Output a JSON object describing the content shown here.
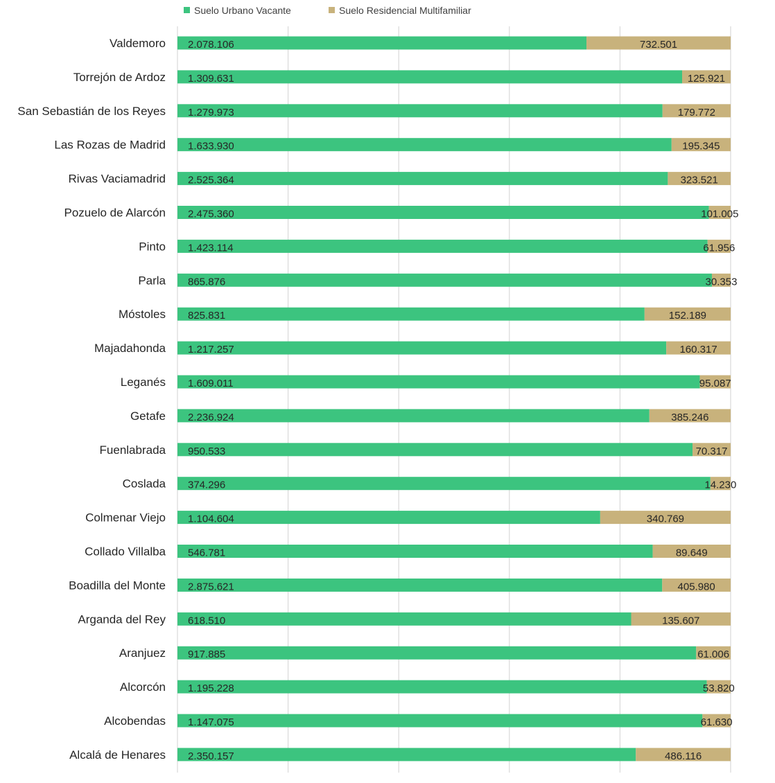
{
  "chart_data": {
    "type": "bar",
    "orientation": "horizontal",
    "stacking": "percent",
    "categories": [
      "Valdemoro",
      "Torrejón de Ardoz",
      "San Sebastián de los Reyes",
      "Las Rozas de Madrid",
      "Rivas Vaciamadrid",
      "Pozuelo de Alarcón",
      "Pinto",
      "Parla",
      "Móstoles",
      "Majadahonda",
      "Leganés",
      "Getafe",
      "Fuenlabrada",
      "Coslada",
      "Colmenar Viejo",
      "Collado Villalba",
      "Boadilla del Monte",
      "Arganda del Rey",
      "Aranjuez",
      "Alcorcón",
      "Alcobendas",
      "Alcalá de Henares"
    ],
    "series": [
      {
        "name": "Suelo Urbano Vacante",
        "color": "#3cc47f",
        "values": [
          2078106,
          1309631,
          1279973,
          1633930,
          2525364,
          2475360,
          1423114,
          865876,
          825831,
          1217257,
          1609011,
          2236924,
          950533,
          374296,
          1104604,
          546781,
          2875621,
          618510,
          917885,
          1195228,
          1147075,
          2350157
        ],
        "labels": [
          "2.078.106",
          "1.309.631",
          "1.279.973",
          "1.633.930",
          "2.525.364",
          "2.475.360",
          "1.423.114",
          "865.876",
          "825.831",
          "1.217.257",
          "1.609.011",
          "2.236.924",
          "950.533",
          "374.296",
          "1.104.604",
          "546.781",
          "2.875.621",
          "618.510",
          "917.885",
          "1.195.228",
          "1.147.075",
          "2.350.157"
        ]
      },
      {
        "name": "Suelo Residencial Multifamiliar",
        "color": "#c8b27c",
        "values": [
          732501,
          125921,
          179772,
          195345,
          323521,
          101005,
          61956,
          30353,
          152189,
          160317,
          95087,
          385246,
          70317,
          14230,
          340769,
          89649,
          405980,
          135607,
          61006,
          53820,
          61630,
          486116
        ],
        "labels": [
          "732.501",
          "125.921",
          "179.772",
          "195.345",
          "323.521",
          "101.005",
          "61.956",
          "30.353",
          "152.189",
          "160.317",
          "95.087",
          "385.246",
          "70.317",
          "14.230",
          "340.769",
          "89.649",
          "405.980",
          "135.607",
          "61.006",
          "53.820",
          "61.630",
          "486.116"
        ]
      }
    ],
    "title": "",
    "xlabel": "",
    "ylabel": "",
    "grid": true,
    "legend_position": "top-left"
  }
}
